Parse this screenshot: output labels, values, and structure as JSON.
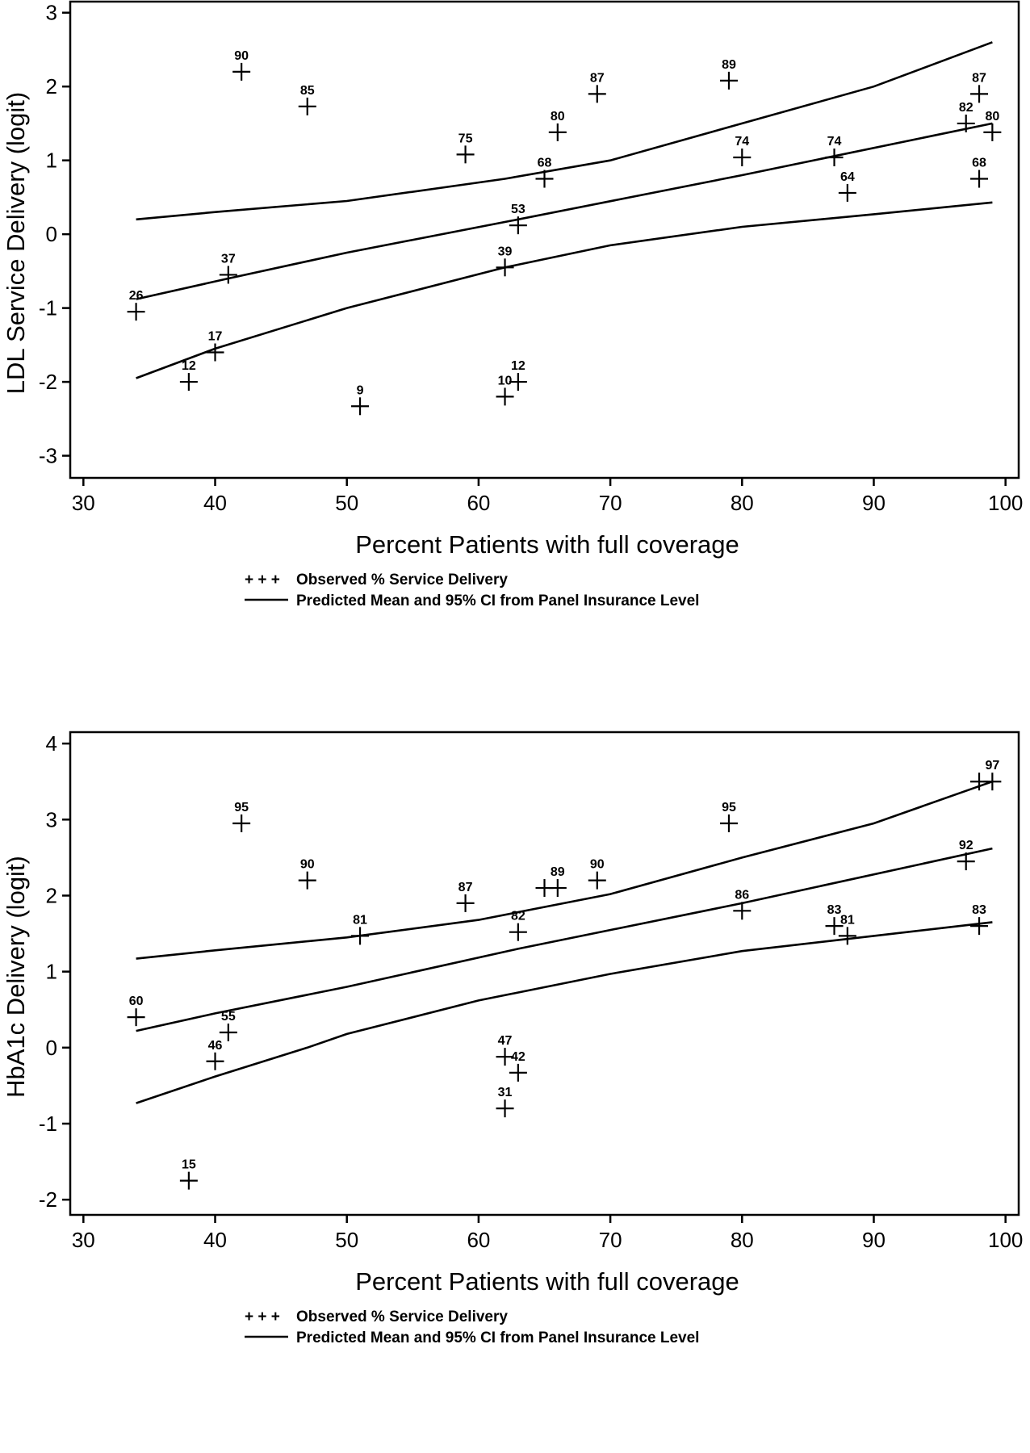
{
  "chart_data": [
    {
      "type": "scatter",
      "title": "",
      "xlabel": "Percent Patients with full coverage",
      "ylabel": "LDL Service Delivery (logit)",
      "xlim": [
        29,
        101
      ],
      "ylim": [
        -3.3,
        3.15
      ],
      "xticks": [
        30,
        40,
        50,
        60,
        70,
        80,
        90,
        100
      ],
      "yticks": [
        -3,
        -2,
        -1,
        0,
        1,
        2,
        3
      ],
      "grid": false,
      "legend": [
        {
          "marker": "+ + +",
          "label": "Observed % Service Delivery"
        },
        {
          "marker": "line",
          "label": "Predicted Mean and 95% CI from Panel Insurance Level"
        }
      ],
      "points": [
        {
          "x": 34,
          "y": -1.05,
          "label": "26"
        },
        {
          "x": 38,
          "y": -2.0,
          "label": "12"
        },
        {
          "x": 40,
          "y": -1.6,
          "label": "17"
        },
        {
          "x": 41,
          "y": -0.55,
          "label": "37"
        },
        {
          "x": 42,
          "y": 2.2,
          "label": "90"
        },
        {
          "x": 47,
          "y": 1.73,
          "label": "85"
        },
        {
          "x": 51,
          "y": -2.33,
          "label": "9"
        },
        {
          "x": 59,
          "y": 1.08,
          "label": "75"
        },
        {
          "x": 62,
          "y": -0.45,
          "label": "39"
        },
        {
          "x": 62,
          "y": -2.2,
          "label": "10"
        },
        {
          "x": 63,
          "y": -2.0,
          "label": "12"
        },
        {
          "x": 63,
          "y": 0.12,
          "label": "53"
        },
        {
          "x": 65,
          "y": 0.75,
          "label": "68"
        },
        {
          "x": 66,
          "y": 1.38,
          "label": "80"
        },
        {
          "x": 69,
          "y": 1.9,
          "label": "87"
        },
        {
          "x": 79,
          "y": 2.08,
          "label": "89"
        },
        {
          "x": 80,
          "y": 1.04,
          "label": "74"
        },
        {
          "x": 87,
          "y": 1.04,
          "label": "74"
        },
        {
          "x": 88,
          "y": 0.56,
          "label": "64"
        },
        {
          "x": 97,
          "y": 1.5,
          "label": "82"
        },
        {
          "x": 98,
          "y": 1.9,
          "label": "87"
        },
        {
          "x": 98,
          "y": 0.75,
          "label": "68"
        },
        {
          "x": 99,
          "y": 1.38,
          "label": "80"
        }
      ],
      "series": [
        {
          "x": [
            34,
            41,
            50,
            63,
            80,
            99
          ],
          "y": [
            -0.88,
            -0.6,
            -0.25,
            0.2,
            0.8,
            1.5
          ]
        },
        {
          "x": [
            34,
            40,
            50,
            62,
            70,
            80,
            90,
            99
          ],
          "y": [
            0.2,
            0.3,
            0.45,
            0.75,
            1.0,
            1.5,
            2.0,
            2.6
          ]
        },
        {
          "x": [
            34,
            40,
            50,
            62,
            70,
            80,
            90,
            99
          ],
          "y": [
            -1.95,
            -1.55,
            -1.0,
            -0.45,
            -0.15,
            0.1,
            0.27,
            0.43
          ]
        }
      ]
    },
    {
      "type": "scatter",
      "title": "",
      "xlabel": "Percent Patients with full coverage",
      "ylabel": "HbA1c Delivery (logit)",
      "xlim": [
        29,
        101
      ],
      "ylim": [
        -2.2,
        4.15
      ],
      "xticks": [
        30,
        40,
        50,
        60,
        70,
        80,
        90,
        100
      ],
      "yticks": [
        -2,
        -1,
        0,
        1,
        2,
        3,
        4
      ],
      "grid": false,
      "legend": [
        {
          "marker": "+ + +",
          "label": "Observed % Service Delivery"
        },
        {
          "marker": "line",
          "label": "Predicted Mean and 95% CI from Panel Insurance Level"
        }
      ],
      "points": [
        {
          "x": 34,
          "y": 0.4,
          "label": "60"
        },
        {
          "x": 38,
          "y": -1.75,
          "label": "15"
        },
        {
          "x": 40,
          "y": -0.18,
          "label": "46"
        },
        {
          "x": 41,
          "y": 0.2,
          "label": "55"
        },
        {
          "x": 42,
          "y": 2.95,
          "label": "95"
        },
        {
          "x": 47,
          "y": 2.2,
          "label": "90"
        },
        {
          "x": 51,
          "y": 1.47,
          "label": "81"
        },
        {
          "x": 59,
          "y": 1.9,
          "label": "87"
        },
        {
          "x": 62,
          "y": -0.12,
          "label": "47"
        },
        {
          "x": 62,
          "y": -0.8,
          "label": "31"
        },
        {
          "x": 63,
          "y": 1.52,
          "label": "82"
        },
        {
          "x": 63,
          "y": -0.33,
          "label": "42"
        },
        {
          "x": 65,
          "y": 2.1,
          "label": ""
        },
        {
          "x": 66,
          "y": 2.1,
          "label": "89"
        },
        {
          "x": 69,
          "y": 2.2,
          "label": "90"
        },
        {
          "x": 79,
          "y": 2.95,
          "label": "95"
        },
        {
          "x": 80,
          "y": 1.8,
          "label": "86"
        },
        {
          "x": 87,
          "y": 1.6,
          "label": "83"
        },
        {
          "x": 88,
          "y": 1.47,
          "label": "81"
        },
        {
          "x": 97,
          "y": 2.45,
          "label": "92"
        },
        {
          "x": 98,
          "y": 1.6,
          "label": "83"
        },
        {
          "x": 98,
          "y": 3.5,
          "label": ""
        },
        {
          "x": 99,
          "y": 3.5,
          "label": "97"
        }
      ],
      "series": [
        {
          "x": [
            34,
            40,
            50,
            63,
            80,
            99
          ],
          "y": [
            0.22,
            0.45,
            0.8,
            1.3,
            1.9,
            2.62
          ]
        },
        {
          "x": [
            34,
            40,
            50,
            60,
            70,
            80,
            90,
            99
          ],
          "y": [
            1.17,
            1.28,
            1.45,
            1.68,
            2.02,
            2.5,
            2.95,
            3.5
          ]
        },
        {
          "x": [
            34,
            40,
            47,
            50,
            60,
            70,
            80,
            90,
            99
          ],
          "y": [
            -0.73,
            -0.38,
            0.0,
            0.18,
            0.62,
            0.97,
            1.27,
            1.47,
            1.65
          ]
        }
      ]
    }
  ]
}
